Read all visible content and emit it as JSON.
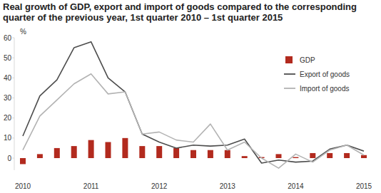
{
  "chart_data": {
    "type": "bar",
    "title": [
      "Real growth of GDP, export and import of goods compared to the corresponding",
      "quarter of the previous year, 1st quarter 2010 – 1st quarter 2015"
    ],
    "y_label": "%",
    "categories": [
      "2010",
      null,
      null,
      null,
      "2011",
      null,
      null,
      null,
      "2012",
      null,
      null,
      null,
      "2013",
      null,
      null,
      null,
      "2014",
      null,
      null,
      null,
      "2015"
    ],
    "series": [
      {
        "name": "GDP",
        "type": "bar",
        "color": "#b22a1e",
        "values": [
          -3,
          2,
          5,
          6,
          9,
          8,
          10,
          6,
          6,
          5,
          4,
          4,
          4,
          1,
          0.5,
          2,
          0.5,
          2.5,
          2.5,
          2.5,
          1.5
        ]
      },
      {
        "name": "Export of goods",
        "type": "line",
        "color": "#4d4d4d",
        "values": [
          11,
          31,
          39,
          55,
          58,
          40,
          33,
          12,
          8,
          5,
          6.5,
          6,
          6.5,
          9.5,
          -2.5,
          -1,
          -2,
          -1.5,
          4.5,
          6.5,
          3.5
        ]
      },
      {
        "name": "Import of goods",
        "type": "line",
        "color": "#b3b3b3",
        "values": [
          4,
          21,
          29,
          37,
          42,
          32,
          33,
          12,
          13,
          9,
          8,
          17,
          4,
          8,
          0,
          -5,
          2,
          -2,
          4,
          6.5,
          1.5
        ]
      }
    ],
    "ylim": [
      -6,
      60
    ],
    "yticks": [
      0,
      10,
      20,
      30,
      40,
      50,
      60
    ],
    "grid": false,
    "legend": "right"
  }
}
